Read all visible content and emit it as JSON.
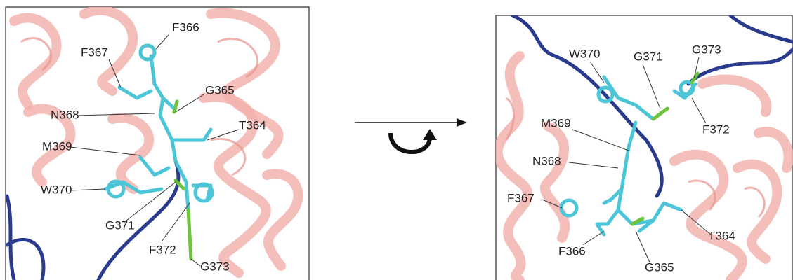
{
  "panels": [
    {
      "labels": [
        "F366",
        "F367",
        "G365",
        "N368",
        "T364",
        "M369",
        "W370",
        "G371",
        "F372",
        "G373"
      ]
    },
    {
      "labels": [
        "W370",
        "G371",
        "G373",
        "F372",
        "M369",
        "N368",
        "F367",
        "T364",
        "F366",
        "G365"
      ]
    }
  ]
}
